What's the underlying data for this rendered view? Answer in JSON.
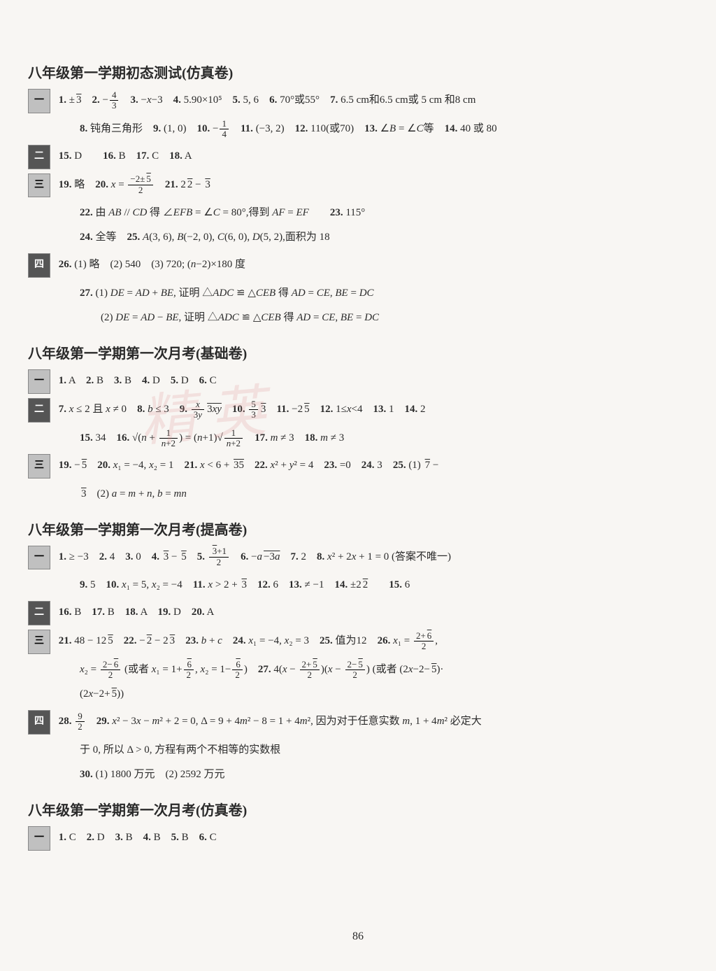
{
  "page_number": "86",
  "watermark": "精 英",
  "colors": {
    "background": "#f8f6f3",
    "text": "#2a2a2a",
    "badge_light": "#c0c0c0",
    "badge_dark": "#555555",
    "watermark": "rgba(220,140,140,0.2)"
  },
  "typography": {
    "body_fontsize": 15,
    "title_fontsize": 20,
    "font_family": "SimSun/STSong serif"
  },
  "sections": [
    {
      "title": "八年级第一学期初态测试(仿真卷)",
      "groups": [
        {
          "badge": "一",
          "lines": [
            "1. ±√3　2. −4/3　3. −x−3　4. 5.90×10⁵　5. 5, 6　6. 70°或55°　7. 6.5 cm和6.5 cm或5 cm和8 cm",
            "8. 钝角三角形　9. (1, 0)　10. −1/4　11. (−3, 2)　12. 110(或70)　13. ∠B = ∠C等　14. 40 或 80"
          ]
        },
        {
          "badge": "二",
          "badge_dark": true,
          "lines": [
            "15. D　　16. B　17. C　18. A"
          ]
        },
        {
          "badge": "三",
          "lines": [
            "19. 略　20. x = (−2±√5)/2　21. 2√2 − √3",
            "22. 由 AB // CD 得 ∠EFB = ∠C = 80°,得到 AF = EF　　23. 115°",
            "24. 全等　25. A(3, 6), B(−2, 0), C(6, 0), D(5, 2),面积为 18"
          ]
        },
        {
          "badge": "四",
          "badge_dark": true,
          "lines": [
            "26. (1) 略　(2) 540　(3) 720; (n−2)×180 度",
            "27. (1) DE = AD + BE, 证明 △ADC ≌ △CEB 得 AD = CE, BE = DC",
            "　　(2) DE = AD − BE, 证明 △ADC ≌ △CEB 得 AD = CE, BE = DC"
          ]
        }
      ]
    },
    {
      "title": "八年级第一学期第一次月考(基础卷)",
      "groups": [
        {
          "badge": "一",
          "lines": [
            "1. A　2. B　3. B　4. D　5. D　6. C"
          ]
        },
        {
          "badge": "二",
          "badge_dark": true,
          "lines": [
            "7. x ≤ 2 且 x ≠ 0　8. b ≤ 3　9. (x/3y)√(3xy)　10. (5/3)√3　11. −2√5　12. 1≤x<4　13. 1　14. 2",
            "15. 34　16. √(n + 1/(n+2)) = (n+1)√(1/(n+2))　17. m ≠ 3　18. m ≠ 3"
          ]
        },
        {
          "badge": "三",
          "lines": [
            "19. −√5　20. x₁ = −4, x₂ = 1　21. x < 6 + √35　22. x² + y² = 4　23. =0 (24. 3　25. (1) √7 −",
            "√3　(2) a = m + n, b = mn"
          ]
        }
      ]
    },
    {
      "title": "八年级第一学期第一次月考(提高卷)",
      "groups": [
        {
          "badge": "一",
          "lines": [
            "1. ≥ −3　2. 4　3. 0　4. √3 − √5　5. (√3+1)/2　6. −a√(−3a)　7. 2　8. x² + 2x + 1 = 0 (答案不唯一)",
            "9. 5　10. x₁ = 5, x₂ = −4　11. x > 2 + √3　12. 6　13. ≠ −1　14. ±2√2　　15. 6"
          ]
        },
        {
          "badge": "二",
          "badge_dark": true,
          "lines": [
            "16. B　17. B　18. A　19. D　20. A"
          ]
        },
        {
          "badge": "三",
          "lines": [
            "21. 48 − 12√5　22. −√2 − 2√3　23. b + c　24. x₁ = −4, x₂ = 3　25. 值为12　26. x₁ = (2+√6)/2,",
            "x₂ = (2−√6)/2 (或者 x₁ = 1+√6/2, x₂ = 1−√6/2)　27. 4(x − (2+√5)/2)(x − (2−√5)/2) (或者 (2x−2−√5)·",
            "(2x−2+√5))"
          ]
        },
        {
          "badge": "四",
          "badge_dark": true,
          "lines": [
            "28. 9/2　29. x² − 3x − m² + 2 = 0, Δ = 9 + 4m² − 8 = 1 + 4m², 因为对于任意实数 m, 1 + 4m² 必定大",
            "于 0, 所以 Δ > 0, 方程有两个不相等的实数根",
            "30. (1) 1800 万元　(2) 2592 万元"
          ]
        }
      ]
    },
    {
      "title": "八年级第一学期第一次月考(仿真卷)",
      "groups": [
        {
          "badge": "一",
          "lines": [
            "1. C　2. D　3. B　4. B　5. B　6. C"
          ]
        }
      ]
    }
  ]
}
